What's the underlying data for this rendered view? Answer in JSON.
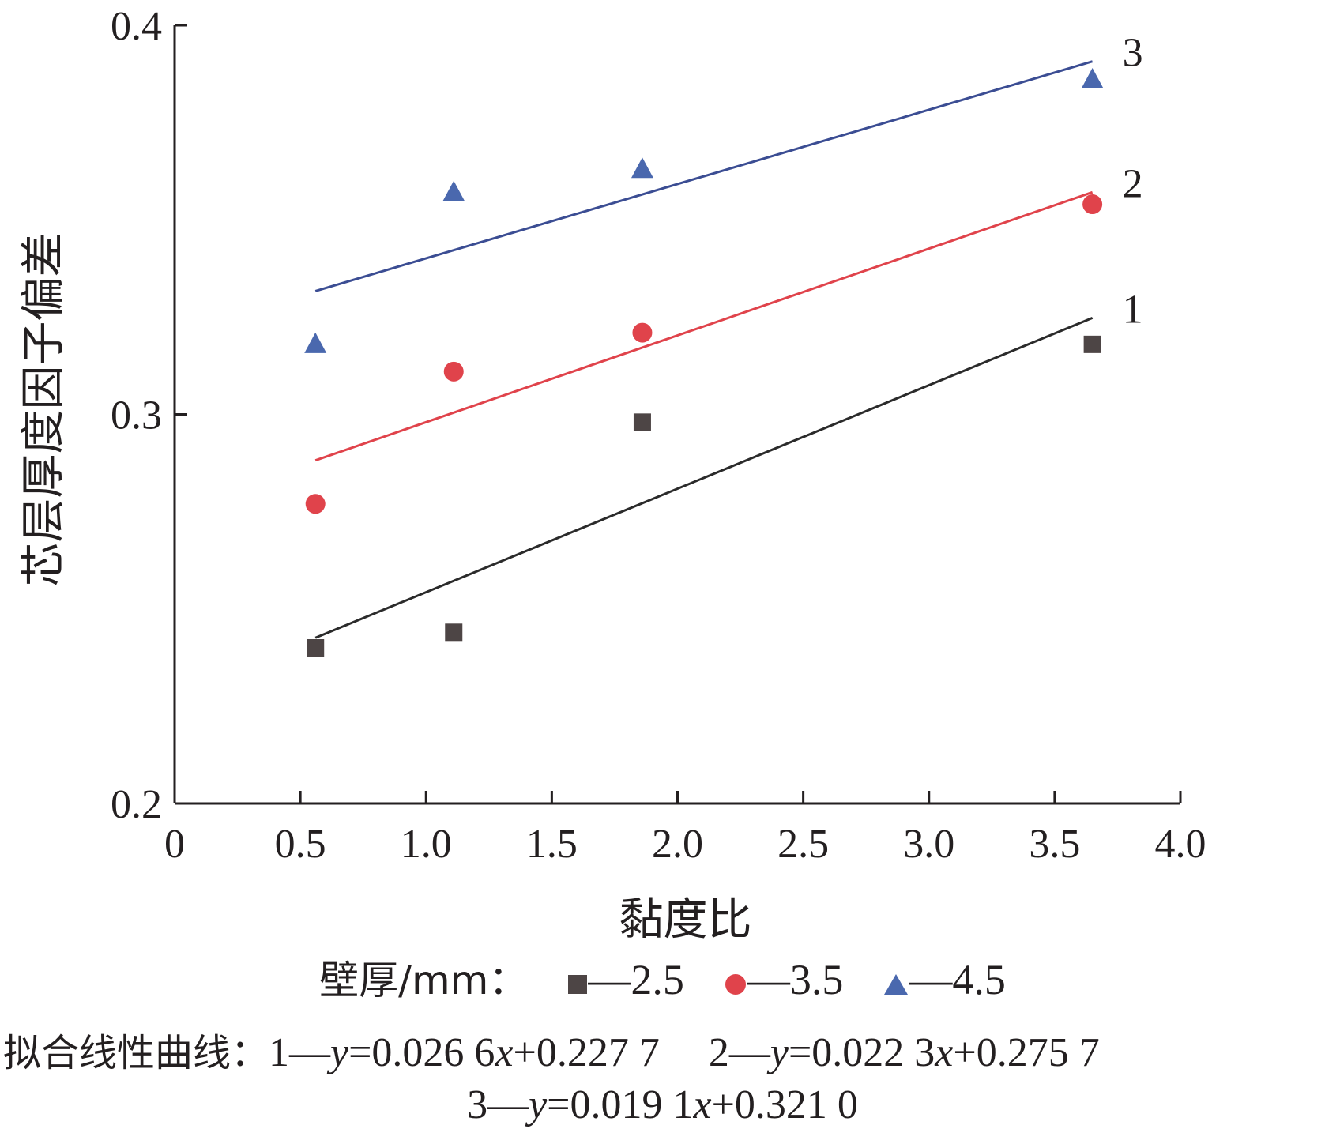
{
  "chart_data": {
    "type": "scatter",
    "xlabel": "黏度比",
    "ylabel": "芯层厚度因子偏差",
    "xlim": [
      0,
      4.0
    ],
    "ylim": [
      0.2,
      0.4
    ],
    "x_ticks": [
      "0",
      "0.5",
      "1.0",
      "1.5",
      "2.0",
      "2.5",
      "3.0",
      "3.5",
      "4.0"
    ],
    "y_ticks": [
      "0.2",
      "0.3",
      "0.4"
    ],
    "grid": false,
    "series": [
      {
        "name": "2.5",
        "marker": "square",
        "color": "#4d4545",
        "line_color": "#2b2b2b",
        "line_label": "1",
        "points": [
          {
            "x": 0.56,
            "y": 0.24
          },
          {
            "x": 1.11,
            "y": 0.244
          },
          {
            "x": 1.86,
            "y": 0.298
          },
          {
            "x": 3.65,
            "y": 0.318
          }
        ],
        "fit": {
          "slope": 0.0266,
          "intercept": 0.2277
        }
      },
      {
        "name": "3.5",
        "marker": "circle",
        "color": "#e0434b",
        "line_color": "#e0434b",
        "line_label": "2",
        "points": [
          {
            "x": 0.56,
            "y": 0.277
          },
          {
            "x": 1.11,
            "y": 0.311
          },
          {
            "x": 1.86,
            "y": 0.321
          },
          {
            "x": 3.65,
            "y": 0.354
          }
        ],
        "fit": {
          "slope": 0.0223,
          "intercept": 0.2757
        }
      },
      {
        "name": "4.5",
        "marker": "triangle",
        "color": "#4a68ae",
        "line_color": "#3b4d93",
        "line_label": "3",
        "points": [
          {
            "x": 0.56,
            "y": 0.318
          },
          {
            "x": 1.11,
            "y": 0.357
          },
          {
            "x": 1.86,
            "y": 0.363
          },
          {
            "x": 3.65,
            "y": 0.386
          }
        ],
        "fit": {
          "slope": 0.0191,
          "intercept": 0.321
        }
      }
    ],
    "fit_x_range": [
      0.56,
      3.65
    ]
  },
  "legend": {
    "title": "壁厚/mm：",
    "dash": "—"
  },
  "fit_caption": {
    "title": "拟合线性曲线：",
    "line1_prefix": "1—",
    "line1_var": "y",
    "line1_mid": "=0.026 6",
    "line1_x": "x",
    "line1_end": "+0.227 7",
    "line2_prefix": "2—",
    "line2_var": "y",
    "line2_mid": "=0.022 3",
    "line2_x": "x",
    "line2_end": "+0.275 7",
    "line3_prefix": "3—",
    "line3_var": "y",
    "line3_mid": "=0.019 1",
    "line3_x": "x",
    "line3_end": "+0.321 0"
  }
}
